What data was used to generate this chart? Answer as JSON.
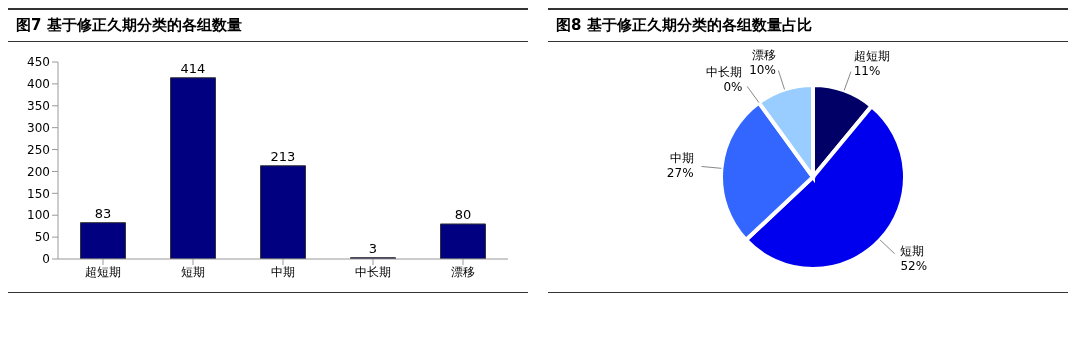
{
  "chart_data": [
    {
      "type": "bar",
      "title": "图7  基于修正久期分类的各组数量",
      "categories": [
        "超短期",
        "短期",
        "中期",
        "中长期",
        "漂移"
      ],
      "values": [
        83,
        414,
        213,
        3,
        80
      ],
      "color": "#000080",
      "ylim": [
        0,
        450
      ],
      "yticks": [
        0,
        50,
        100,
        150,
        200,
        250,
        300,
        350,
        400,
        450
      ],
      "grid": false,
      "legend": false,
      "data_labels": true
    },
    {
      "type": "pie",
      "title": "图8  基于修正久期分类的各组数量占比",
      "categories": [
        "超短期",
        "短期",
        "中期",
        "中长期",
        "漂移"
      ],
      "values": [
        11,
        52,
        27,
        0,
        10
      ],
      "value_labels": [
        "11%",
        "52%",
        "27%",
        "0%",
        "10%"
      ],
      "colors": [
        "#000066",
        "#0000ee",
        "#3366ff",
        "#00b0f0",
        "#99ccff"
      ],
      "legend": false
    }
  ]
}
